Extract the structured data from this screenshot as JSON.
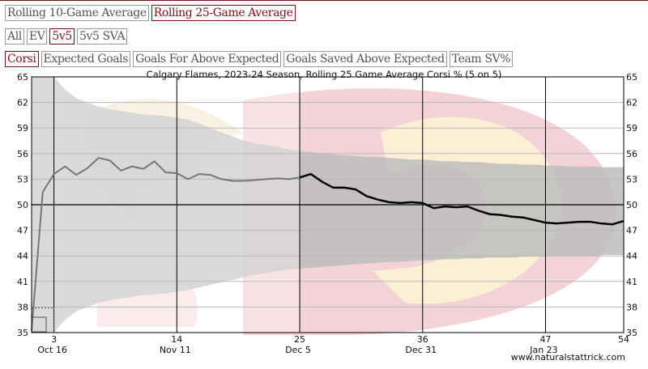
{
  "tabs_window": [
    {
      "label": "Rolling 10-Game Average",
      "active": false
    },
    {
      "label": "Rolling 25-Game Average",
      "active": true
    }
  ],
  "tabs_strength": [
    {
      "label": "All",
      "active": false
    },
    {
      "label": "EV",
      "active": false
    },
    {
      "label": "5v5",
      "active": true
    },
    {
      "label": "5v5 SVA",
      "active": false
    }
  ],
  "tabs_metric": [
    {
      "label": "Corsi",
      "active": true
    },
    {
      "label": "Expected Goals",
      "active": false
    },
    {
      "label": "Goals For Above Expected",
      "active": false
    },
    {
      "label": "Goals Saved Above Expected",
      "active": false
    },
    {
      "label": "Team SV%",
      "active": false
    }
  ],
  "colors": {
    "accent": "#7a0f1c",
    "line": "#000000",
    "band": "#bdbdbd"
  },
  "chart_data": {
    "type": "line",
    "title": "Calgary Flames, 2023-24 Season, Rolling 25 Game Average Corsi % (5 on 5)",
    "xlim": [
      1,
      54
    ],
    "ylim": [
      35,
      65
    ],
    "yticks": [
      35,
      38,
      41,
      44,
      47,
      50,
      53,
      56,
      59,
      62,
      65
    ],
    "xticks": [
      {
        "game": 3,
        "date": "Oct 16"
      },
      {
        "game": 14,
        "date": "Nov 11"
      },
      {
        "game": 25,
        "date": "Dec 5"
      },
      {
        "game": 36,
        "date": "Dec 31"
      },
      {
        "game": 47,
        "date": "Jan 23"
      },
      {
        "game": 54,
        "date": ""
      }
    ],
    "reference_line": 50,
    "series": [
      {
        "x": [
          1,
          2,
          3,
          4,
          5,
          6,
          7,
          8,
          9,
          10,
          11,
          12,
          13,
          14,
          15,
          16,
          17,
          18,
          19,
          20,
          21,
          22,
          23,
          24,
          25,
          26,
          27,
          28,
          29,
          30,
          31,
          32,
          33,
          34,
          35,
          36,
          37,
          38,
          39,
          40,
          41,
          42,
          43,
          44,
          45,
          46,
          47,
          48,
          49,
          50,
          51,
          52,
          53,
          54
        ],
        "y": [
          35.2,
          51.5,
          53.6,
          54.5,
          53.5,
          54.3,
          55.5,
          55.2,
          54.0,
          54.5,
          54.2,
          55.1,
          53.8,
          53.7,
          53.0,
          53.6,
          53.5,
          53.0,
          52.8,
          52.8,
          52.9,
          53.0,
          53.1,
          53.0,
          53.2,
          53.6,
          52.7,
          52.0,
          52.0,
          51.8,
          51.0,
          50.6,
          50.3,
          50.2,
          50.3,
          50.2,
          49.6,
          49.8,
          49.7,
          49.8,
          49.3,
          48.9,
          48.8,
          48.6,
          48.5,
          48.2,
          47.9,
          47.8,
          47.9,
          48.0,
          48.0,
          47.8,
          47.7,
          48.1
        ]
      }
    ],
    "band_upper": [
      65,
      65,
      65,
      63.5,
      62.5,
      62,
      61.5,
      61.2,
      61,
      60.8,
      60.6,
      60.5,
      60.4,
      60.2,
      60,
      59.5,
      59,
      58.5,
      58,
      57.5,
      57.2,
      57,
      56.8,
      56.5,
      56.3,
      56.2,
      56,
      55.9,
      55.8,
      55.7,
      55.6,
      55.6,
      55.5,
      55.4,
      55.3,
      55.3,
      55.2,
      55.1,
      55.1,
      55,
      55,
      54.9,
      54.8,
      54.8,
      54.7,
      54.7,
      54.6,
      54.6,
      54.5,
      54.5,
      54.5,
      54.4,
      54.4,
      54.4
    ],
    "band_lower": [
      35,
      35,
      35,
      36.5,
      37.5,
      38,
      38.5,
      38.8,
      39,
      39.2,
      39.4,
      39.5,
      39.6,
      39.8,
      40,
      40.3,
      40.6,
      40.9,
      41.2,
      41.5,
      41.8,
      42,
      42.2,
      42.4,
      42.5,
      42.6,
      42.7,
      42.8,
      42.9,
      43,
      43.1,
      43.2,
      43.3,
      43.3,
      43.4,
      43.5,
      43.5,
      43.6,
      43.6,
      43.7,
      43.7,
      43.8,
      43.8,
      43.8,
      43.9,
      43.9,
      43.9,
      44,
      44,
      44,
      44,
      44.1,
      44.1,
      44.1
    ],
    "highlight_until_game": 25,
    "watermark": "www.naturalstattrick.com"
  }
}
